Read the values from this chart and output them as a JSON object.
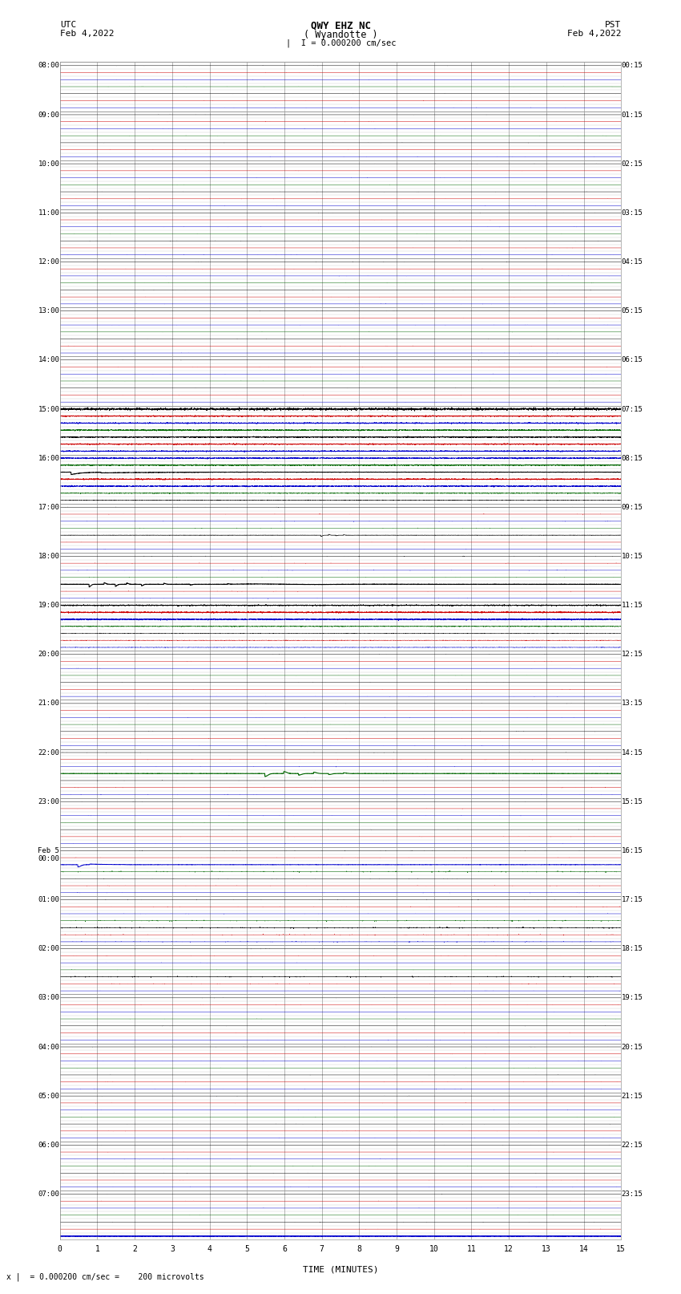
{
  "title_line1": "QWY EHZ NC",
  "title_line2": "( Wyandotte )",
  "scale_label": "I = 0.000200 cm/sec",
  "utc_label": "UTC",
  "utc_date": "Feb 4,2022",
  "pst_label": "PST",
  "pst_date": "Feb 4,2022",
  "left_times": [
    "08:00",
    "09:00",
    "10:00",
    "11:00",
    "12:00",
    "13:00",
    "14:00",
    "15:00",
    "16:00",
    "17:00",
    "18:00",
    "19:00",
    "20:00",
    "21:00",
    "22:00",
    "23:00",
    "Feb 5\n00:00",
    "01:00",
    "02:00",
    "03:00",
    "04:00",
    "05:00",
    "06:00",
    "07:00"
  ],
  "right_times": [
    "00:15",
    "01:15",
    "02:15",
    "03:15",
    "04:15",
    "05:15",
    "06:15",
    "07:15",
    "08:15",
    "09:15",
    "10:15",
    "11:15",
    "12:15",
    "13:15",
    "14:15",
    "15:15",
    "16:15",
    "17:15",
    "18:15",
    "19:15",
    "20:15",
    "21:15",
    "22:15",
    "23:15"
  ],
  "n_hours": 24,
  "n_cols": 15,
  "n_subrows": 7,
  "xlabel": "TIME (MINUTES)",
  "footer": "x |  = 0.000200 cm/sec =    200 microvolts",
  "bg_color": "#ffffff",
  "grid_color": "#999999",
  "minor_grid_color": "#cccccc",
  "trace_black": "#000000",
  "trace_blue": "#0000cc",
  "trace_red": "#cc0000",
  "trace_green": "#006600",
  "fig_width": 8.5,
  "fig_height": 16.13
}
